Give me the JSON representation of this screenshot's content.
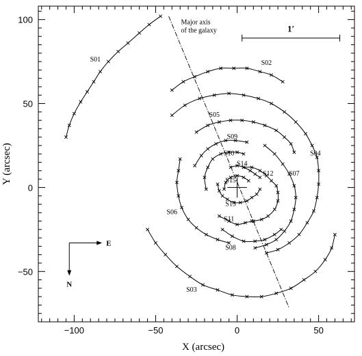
{
  "chart_data": {
    "type": "line",
    "title": "",
    "xlabel": "X  (arcsec)",
    "ylabel": "Y  (arcsec)",
    "xlim": [
      -122,
      72
    ],
    "ylim": [
      -80,
      108
    ],
    "xticks": [
      -100,
      -50,
      0,
      50
    ],
    "yticks": [
      -50,
      0,
      50,
      100
    ],
    "xticks_minor_step": 5,
    "yticks_minor_step": 5,
    "grid": false,
    "legend": "none",
    "series": [
      {
        "name": "S01",
        "label_at": [
          -87,
          75
        ],
        "points": [
          [
            -105,
            30
          ],
          [
            -103,
            37
          ],
          [
            -100,
            44
          ],
          [
            -96,
            51
          ],
          [
            -92,
            57
          ],
          [
            -88,
            63
          ],
          [
            -84,
            69
          ],
          [
            -79,
            75
          ],
          [
            -73,
            81
          ],
          [
            -67,
            86
          ],
          [
            -60,
            92
          ],
          [
            -54,
            97
          ],
          [
            -47,
            102
          ]
        ]
      },
      {
        "name": "S02",
        "label_at": [
          18,
          73
        ],
        "points": [
          [
            -40,
            58
          ],
          [
            -33,
            63
          ],
          [
            -26,
            66
          ],
          [
            -18,
            69
          ],
          [
            -10,
            71
          ],
          [
            -2,
            71
          ],
          [
            6,
            71
          ],
          [
            14,
            69
          ],
          [
            21,
            67
          ],
          [
            28,
            63
          ]
        ]
      },
      {
        "name": "S03",
        "label_at": [
          -28,
          -62
        ],
        "points": [
          [
            -55,
            -25
          ],
          [
            -50,
            -33
          ],
          [
            -44,
            -40
          ],
          [
            -37,
            -47
          ],
          [
            -29,
            -53
          ],
          [
            -21,
            -58
          ],
          [
            -12,
            -61
          ],
          [
            -3,
            -64
          ],
          [
            6,
            -65
          ],
          [
            15,
            -65
          ],
          [
            24,
            -63
          ],
          [
            33,
            -60
          ],
          [
            41,
            -55
          ],
          [
            48,
            -50
          ],
          [
            54,
            -43
          ],
          [
            58,
            -36
          ],
          [
            60,
            -28
          ]
        ]
      },
      {
        "name": "S04",
        "label_at": [
          48,
          19
        ],
        "points": [
          [
            -40,
            43
          ],
          [
            -32,
            49
          ],
          [
            -23,
            53
          ],
          [
            -14,
            55
          ],
          [
            -5,
            56
          ],
          [
            4,
            55
          ],
          [
            13,
            53
          ],
          [
            21,
            50
          ],
          [
            29,
            45
          ],
          [
            36,
            39
          ],
          [
            42,
            32
          ],
          [
            46,
            25
          ],
          [
            49,
            18
          ],
          [
            50,
            10
          ],
          [
            50,
            2
          ],
          [
            49,
            -6
          ],
          [
            47,
            -14
          ],
          [
            43,
            -21
          ],
          [
            38,
            -28
          ],
          [
            32,
            -33
          ],
          [
            25,
            -37
          ],
          [
            18,
            -39
          ]
        ]
      },
      {
        "name": "S05",
        "label_at": [
          -14,
          42
        ],
        "points": [
          [
            -25,
            33
          ],
          [
            -18,
            37
          ],
          [
            -11,
            39
          ],
          [
            -4,
            40
          ],
          [
            3,
            40
          ],
          [
            10,
            39
          ],
          [
            17,
            37
          ],
          [
            24,
            34
          ],
          [
            29,
            30
          ],
          [
            33,
            26
          ],
          [
            35,
            21
          ]
        ]
      },
      {
        "name": "S06",
        "label_at": [
          -40,
          -16
        ],
        "points": [
          [
            -35,
            17
          ],
          [
            -36,
            10
          ],
          [
            -37,
            3
          ],
          [
            -36,
            -5
          ],
          [
            -34,
            -12
          ],
          [
            -30,
            -19
          ],
          [
            -25,
            -24
          ],
          [
            -19,
            -28
          ],
          [
            -12,
            -31
          ],
          [
            -5,
            -33
          ]
        ]
      },
      {
        "name": "S07",
        "label_at": [
          35,
          7
        ],
        "points": [
          [
            17,
            25
          ],
          [
            23,
            20
          ],
          [
            28,
            14
          ],
          [
            32,
            8
          ],
          [
            35,
            1
          ],
          [
            36,
            -6
          ],
          [
            35,
            -13
          ],
          [
            33,
            -20
          ],
          [
            29,
            -26
          ],
          [
            24,
            -31
          ],
          [
            18,
            -34
          ],
          [
            11,
            -36
          ]
        ]
      },
      {
        "name": "S08",
        "label_at": [
          -4,
          -37
        ],
        "points": [
          [
            -9,
            -25
          ],
          [
            -3,
            -29
          ],
          [
            4,
            -32
          ],
          [
            11,
            -32
          ],
          [
            17,
            -31
          ],
          [
            23,
            -28
          ],
          [
            27,
            -25
          ]
        ]
      },
      {
        "name": "S09",
        "label_at": [
          -3,
          29
        ],
        "points": [
          [
            -26,
            13
          ],
          [
            -22,
            19
          ],
          [
            -18,
            23
          ],
          [
            -13,
            26
          ],
          [
            -7,
            28
          ],
          [
            -1,
            28
          ],
          [
            6,
            27
          ]
        ]
      },
      {
        "name": "S10",
        "label_at": [
          -5,
          19
        ],
        "points": [
          [
            -19,
            -1
          ],
          [
            -20,
            6
          ],
          [
            -18,
            12
          ],
          [
            -15,
            17
          ],
          [
            -10,
            20
          ],
          [
            -5,
            21
          ],
          [
            0,
            21
          ],
          [
            4,
            20
          ]
        ]
      },
      {
        "name": "S11",
        "label_at": [
          -5,
          -20
        ],
        "points": [
          [
            -11,
            -17
          ],
          [
            -5,
            -20
          ],
          [
            0,
            -22
          ],
          [
            5,
            -21
          ],
          [
            9,
            -20
          ]
        ]
      },
      {
        "name": "S12",
        "label_at": [
          19,
          7
        ],
        "points": [
          [
            4,
            12
          ],
          [
            9,
            12
          ],
          [
            14,
            10
          ],
          [
            18,
            7
          ],
          [
            21,
            4
          ],
          [
            24,
            1
          ],
          [
            25,
            -3
          ],
          [
            25,
            -8
          ],
          [
            23,
            -13
          ],
          [
            19,
            -17
          ],
          [
            15,
            -19
          ],
          [
            10,
            -20
          ]
        ]
      },
      {
        "name": "S13",
        "label_at": [
          -4,
          -11
        ],
        "points": [
          [
            -12,
            2
          ],
          [
            -11,
            -2
          ],
          [
            -9,
            -5
          ],
          [
            -6,
            -7
          ],
          [
            -2,
            -9
          ],
          [
            2,
            -9
          ],
          [
            6,
            -8
          ],
          [
            9,
            -6
          ],
          [
            12,
            -4
          ],
          [
            14,
            -1
          ]
        ]
      },
      {
        "name": "S14",
        "label_at": [
          3,
          13
        ],
        "points": [
          [
            -4,
            12
          ],
          [
            0,
            13
          ],
          [
            4,
            12
          ],
          [
            8,
            10
          ],
          [
            11,
            8
          ],
          [
            14,
            6
          ]
        ]
      },
      {
        "name": "S15",
        "label_at": [
          -4,
          3
        ],
        "points": [
          [
            -8,
            -1
          ],
          [
            -7,
            3
          ],
          [
            -4,
            6
          ],
          [
            0,
            7
          ],
          [
            4,
            6
          ],
          [
            7,
            4
          ]
        ]
      }
    ],
    "major_axis": {
      "label_line1": "Major axis",
      "label_line2": "of the galaxy",
      "from": [
        -42,
        102
      ],
      "to": [
        32,
        -72
      ]
    },
    "scale_bar": {
      "label": "1′",
      "from_x": 3,
      "to_x": 63,
      "y": 89
    },
    "compass": {
      "east": "E",
      "north": "N",
      "origin": [
        -103,
        -33
      ]
    }
  }
}
